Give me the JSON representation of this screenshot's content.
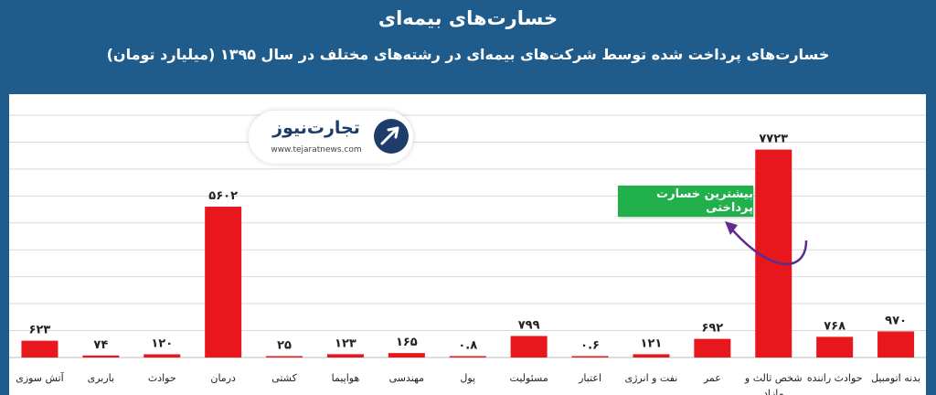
{
  "header": {
    "title": "خسارت‌های بیمه‌ای",
    "subtitle": "خسارت‌های پرداخت شده توسط شرکت‌های بیمه‌ای در رشته‌های مختلف در سال ۱۳۹۵ (میلیارد تومان)"
  },
  "logo": {
    "brand": "تجارت‌نیوز",
    "url": "www.tejaratnews.com"
  },
  "callout": {
    "text": "بیشترین خسارت پرداختی"
  },
  "colors": {
    "background": "#1f5c8b",
    "bar": "#e8161d",
    "callout": "#21b04b",
    "arrow": "#5b2d8e"
  },
  "chart_data": {
    "type": "bar",
    "title": "خسارت‌های بیمه‌ای",
    "categories": [
      "آتش سوزی",
      "باربری",
      "حوادث",
      "درمان",
      "کشتی",
      "هواپیما",
      "مهندسی",
      "پول",
      "مسئولیت",
      "اعتبار",
      "نفت و انرژی",
      "عمر",
      "شخص ثالث و مازاد",
      "حوادث راننده",
      "بدنه اتومبیل"
    ],
    "values": [
      623,
      74,
      120,
      5602,
      25,
      123,
      165,
      0.8,
      799,
      0.6,
      121,
      692,
      7723,
      768,
      970
    ],
    "value_labels": [
      "۶۲۳",
      "۷۴",
      "۱۲۰",
      "۵۶۰۲",
      "۲۵",
      "۱۲۳",
      "۱۶۵",
      "۰.۸",
      "۷۹۹",
      "۰.۶",
      "۱۲۱",
      "۶۹۲",
      "۷۷۲۳",
      "۷۶۸",
      "۹۷۰"
    ],
    "ylim": [
      0,
      9000
    ],
    "grid": true,
    "annotation": "بیشترین خسارت پرداختی"
  }
}
